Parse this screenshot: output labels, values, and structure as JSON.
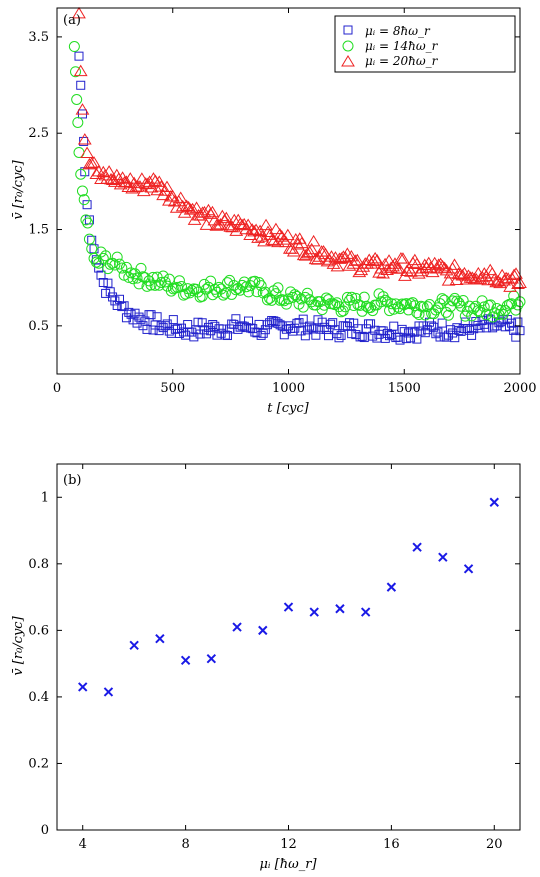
{
  "chart_data": [
    {
      "type": "scatter",
      "panel_label": "(a)",
      "xlabel": "t [cyc]",
      "ylabel": "v̄ [r₀/cyc]",
      "xlim": [
        0,
        2000
      ],
      "ylim": [
        0,
        3.8
      ],
      "xticks": [
        "0",
        "500",
        "1000",
        "1500",
        "2000"
      ],
      "yticks": [
        "0.5",
        "1.5",
        "2.5",
        "3.5"
      ],
      "legend_position": "top-right",
      "grid": false,
      "series": [
        {
          "name": "μᵢ = 8ħω_r",
          "marker": "square",
          "color": "#2222cc",
          "note": "dense noisy data; representative trend values",
          "x": [
            95,
            110,
            120,
            140,
            160,
            180,
            200,
            240,
            280,
            320,
            380,
            450,
            520,
            600,
            700,
            800,
            900,
            1000,
            1100,
            1200,
            1300,
            1400,
            1500,
            1600,
            1700,
            1800,
            1900,
            2000
          ],
          "y": [
            3.3,
            2.7,
            2.1,
            1.6,
            1.3,
            1.1,
            0.95,
            0.8,
            0.7,
            0.62,
            0.55,
            0.5,
            0.47,
            0.46,
            0.47,
            0.5,
            0.46,
            0.5,
            0.48,
            0.46,
            0.47,
            0.45,
            0.44,
            0.46,
            0.46,
            0.47,
            0.5,
            0.45
          ]
        },
        {
          "name": "μᵢ = 14ħω_r",
          "marker": "circle",
          "color": "#22dd22",
          "note": "dense noisy data; representative trend values",
          "x": [
            75,
            85,
            95,
            110,
            125,
            140,
            160,
            180,
            200,
            240,
            280,
            320,
            380,
            450,
            520,
            600,
            700,
            800,
            900,
            1000,
            1100,
            1200,
            1300,
            1400,
            1500,
            1600,
            1700,
            1800,
            1900,
            2000
          ],
          "y": [
            3.4,
            2.85,
            2.3,
            1.9,
            1.6,
            1.4,
            1.2,
            1.15,
            1.2,
            1.15,
            1.1,
            1.05,
            1.0,
            0.95,
            0.9,
            0.88,
            0.9,
            0.92,
            0.85,
            0.78,
            0.75,
            0.72,
            0.72,
            0.75,
            0.72,
            0.7,
            0.7,
            0.68,
            0.68,
            0.75
          ]
        },
        {
          "name": "μᵢ = 20ħω_r",
          "marker": "triangle",
          "color": "#ee2222",
          "note": "dense noisy data; representative trend values",
          "x": [
            95,
            110,
            130,
            160,
            200,
            250,
            300,
            350,
            400,
            450,
            500,
            560,
            620,
            680,
            740,
            800,
            860,
            920,
            980,
            1040,
            1100,
            1160,
            1220,
            1280,
            1340,
            1400,
            1460,
            1520,
            1580,
            1640,
            1700,
            1760,
            1820,
            1880,
            1940,
            2000
          ],
          "y": [
            3.75,
            2.75,
            2.3,
            2.2,
            2.1,
            2.0,
            2.0,
            1.95,
            2.0,
            1.95,
            1.85,
            1.75,
            1.65,
            1.6,
            1.55,
            1.55,
            1.5,
            1.45,
            1.4,
            1.35,
            1.3,
            1.25,
            1.2,
            1.15,
            1.15,
            1.1,
            1.15,
            1.1,
            1.1,
            1.1,
            1.05,
            1.05,
            1.05,
            1.05,
            1.0,
            0.95
          ]
        }
      ]
    },
    {
      "type": "scatter",
      "panel_label": "(b)",
      "xlabel": "μᵢ [ħω_r]",
      "ylabel": "v̄ [r₀/cyc]",
      "xlim": [
        3,
        21
      ],
      "ylim": [
        0,
        1.1
      ],
      "xticks": [
        "4",
        "8",
        "12",
        "16",
        "20"
      ],
      "yticks": [
        "0",
        "0.2",
        "0.4",
        "0.6",
        "0.8",
        "1"
      ],
      "grid": false,
      "series": [
        {
          "marker": "x",
          "color": "#1a1ae6",
          "x": [
            4,
            5,
            6,
            7,
            8,
            9,
            10,
            11,
            12,
            13,
            14,
            15,
            16,
            17,
            18,
            19,
            20
          ],
          "y": [
            0.43,
            0.415,
            0.555,
            0.575,
            0.51,
            0.515,
            0.61,
            0.6,
            0.67,
            0.655,
            0.665,
            0.655,
            0.73,
            0.85,
            0.82,
            0.785,
            0.985
          ]
        }
      ]
    }
  ]
}
